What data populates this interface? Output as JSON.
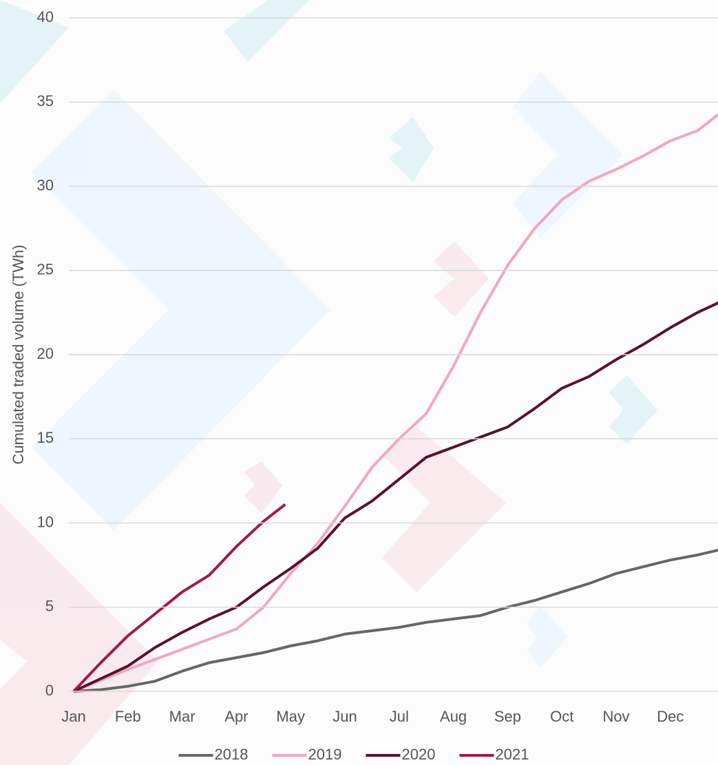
{
  "chart_data": {
    "type": "line",
    "y_label": "Cumulated traded volume (TWh)",
    "xlim": [
      0,
      12
    ],
    "xticks": [
      {
        "value": 0,
        "label": "Jan"
      },
      {
        "value": 1,
        "label": "Feb"
      },
      {
        "value": 2,
        "label": "Mar"
      },
      {
        "value": 3,
        "label": "Apr"
      },
      {
        "value": 4,
        "label": "May"
      },
      {
        "value": 5,
        "label": "Jun"
      },
      {
        "value": 6,
        "label": "Jul"
      },
      {
        "value": 7,
        "label": "Aug"
      },
      {
        "value": 8,
        "label": "Sep"
      },
      {
        "value": 9,
        "label": "Oct"
      },
      {
        "value": 10,
        "label": "Nov"
      },
      {
        "value": 11,
        "label": "Dec"
      }
    ],
    "ylim": [
      0,
      40
    ],
    "yticks": [
      0,
      5,
      10,
      15,
      20,
      25,
      30,
      35,
      40
    ],
    "grid": true,
    "legend": "bottom",
    "series": [
      {
        "name": "2018",
        "color": "#666666",
        "x": [
          0,
          0.5,
          1,
          1.5,
          2,
          2.5,
          3,
          3.5,
          4,
          4.5,
          5,
          5.5,
          6,
          6.5,
          7,
          7.5,
          8,
          8.5,
          9,
          9.5,
          10,
          10.5,
          11,
          11.5,
          11.9
        ],
        "values": [
          0,
          0.1,
          0.3,
          0.6,
          1.2,
          1.7,
          2.0,
          2.3,
          2.7,
          3.0,
          3.4,
          3.6,
          3.8,
          4.1,
          4.3,
          4.5,
          5.0,
          5.4,
          5.9,
          6.4,
          7.0,
          7.4,
          7.8,
          8.1,
          8.4
        ]
      },
      {
        "name": "2019",
        "color": "#f0a7c0",
        "x": [
          0,
          1,
          2,
          3,
          3.5,
          4,
          4.5,
          5,
          5.5,
          6,
          6.5,
          7,
          7.5,
          8,
          8.5,
          9,
          9.5,
          10,
          10.5,
          11,
          11.5,
          11.9
        ],
        "values": [
          0,
          1.3,
          2.5,
          3.7,
          5.0,
          7.0,
          8.8,
          11.0,
          13.3,
          15.0,
          16.5,
          19.3,
          22.5,
          25.3,
          27.5,
          29.2,
          30.3,
          31.0,
          31.8,
          32.7,
          33.3,
          34.3
        ]
      },
      {
        "name": "2020",
        "color": "#5c0f2e",
        "x": [
          0,
          1,
          1.5,
          2,
          2.5,
          3,
          3.5,
          4,
          4.5,
          5,
          5.5,
          6,
          6.5,
          7,
          7.5,
          8,
          8.5,
          9,
          9.5,
          10,
          10.5,
          11,
          11.5,
          11.9
        ],
        "values": [
          0,
          1.5,
          2.6,
          3.5,
          4.3,
          5.0,
          6.2,
          7.3,
          8.5,
          10.3,
          11.3,
          12.6,
          13.9,
          14.5,
          15.1,
          15.7,
          16.8,
          18.0,
          18.7,
          19.7,
          20.6,
          21.6,
          22.5,
          23.1
        ]
      },
      {
        "name": "2021",
        "color": "#a3174d",
        "x": [
          0,
          0.5,
          1,
          1.5,
          2,
          2.5,
          3,
          3.5,
          3.9
        ],
        "values": [
          0,
          1.7,
          3.3,
          4.6,
          5.9,
          6.9,
          8.6,
          10.1,
          11.1
        ]
      }
    ]
  }
}
